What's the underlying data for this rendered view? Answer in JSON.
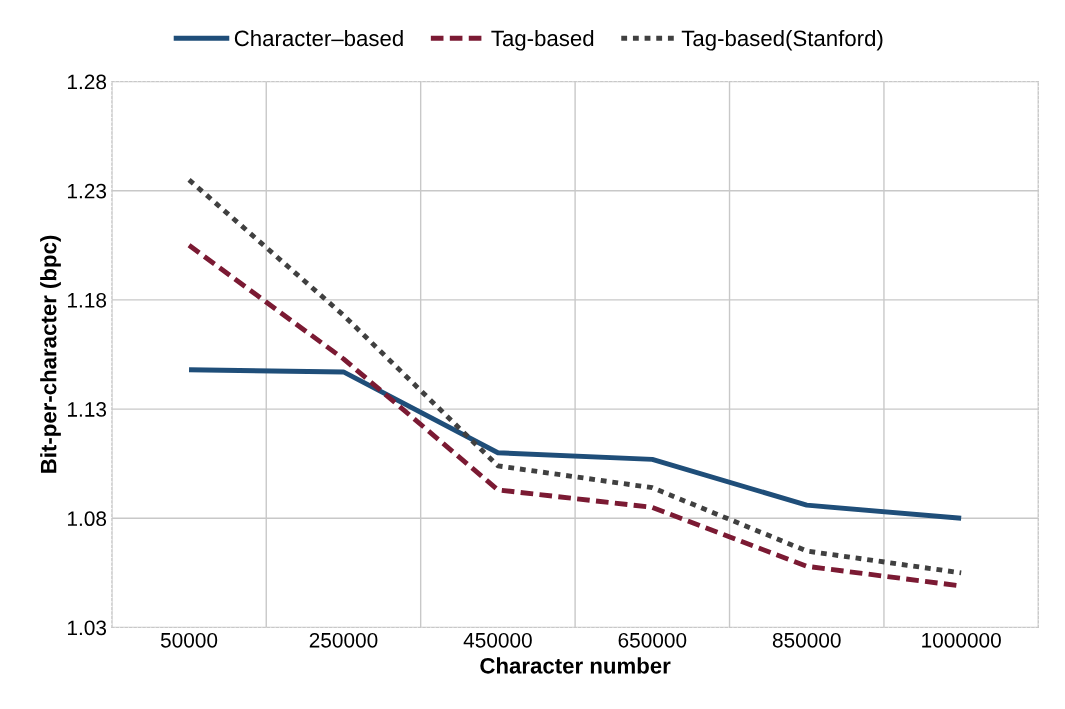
{
  "chart_data": {
    "type": "line",
    "xlabel": "Character number",
    "ylabel": "Bit-per-character (bpc)",
    "categories": [
      "50000",
      "250000",
      "450000",
      "650000",
      "850000",
      "1000000"
    ],
    "ylim": [
      1.03,
      1.28
    ],
    "yticks": [
      {
        "value": 1.03,
        "label": "1.03"
      },
      {
        "value": 1.08,
        "label": "1.08"
      },
      {
        "value": 1.13,
        "label": "1.13"
      },
      {
        "value": 1.18,
        "label": "1.18"
      },
      {
        "value": 1.23,
        "label": "1.23"
      },
      {
        "value": 1.28,
        "label": "1.28"
      }
    ],
    "grid": true,
    "legend": "top",
    "marker": "none",
    "series": [
      {
        "name": "Character‒based",
        "color": "#1f4e79",
        "line_style": "solid",
        "values": [
          1.148,
          1.147,
          1.11,
          1.107,
          1.086,
          1.08
        ]
      },
      {
        "name": "Tag-based",
        "color": "#7b1a33",
        "line_style": "dashed",
        "values": [
          1.205,
          1.153,
          1.093,
          1.085,
          1.058,
          1.049
        ]
      },
      {
        "name": "Tag-based(Stanford)",
        "color": "#404040",
        "line_style": "dotted",
        "values": [
          1.235,
          1.173,
          1.104,
          1.094,
          1.065,
          1.055
        ]
      }
    ]
  }
}
